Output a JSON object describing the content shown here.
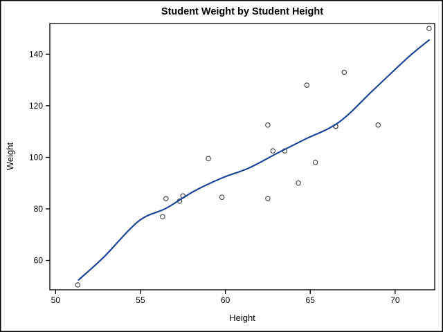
{
  "figure": {
    "background": "#ffffff",
    "border_color": "#000000"
  },
  "chart_data": {
    "type": "scatter",
    "title": "Student Weight by Student Height",
    "xlabel": "Height",
    "ylabel": "Weight",
    "x_ticks": [
      50,
      55,
      60,
      65,
      70
    ],
    "y_ticks": [
      60,
      80,
      100,
      120,
      140
    ],
    "xlim": [
      49.66,
      72.33
    ],
    "ylim": [
      48.6,
      151.9
    ],
    "grid": false,
    "legend": null,
    "points": [
      [
        51.3,
        50.5
      ],
      [
        56.3,
        77.0
      ],
      [
        56.5,
        84.0
      ],
      [
        57.3,
        83.0
      ],
      [
        57.5,
        85.0
      ],
      [
        59.0,
        99.5
      ],
      [
        59.8,
        84.5
      ],
      [
        62.5,
        84.0
      ],
      [
        62.5,
        112.5
      ],
      [
        62.8,
        102.5
      ],
      [
        63.5,
        102.5
      ],
      [
        64.3,
        90.0
      ],
      [
        64.8,
        128.0
      ],
      [
        65.3,
        98.0
      ],
      [
        66.5,
        112.0
      ],
      [
        66.5,
        112.0
      ],
      [
        67.0,
        133.0
      ],
      [
        69.0,
        112.5
      ],
      [
        72.0,
        150.0
      ]
    ],
    "fit_curve": {
      "name": "spline-fit",
      "color": "#1e4597",
      "width": 2.2,
      "points": [
        [
          51.35,
          52.4
        ],
        [
          52.84,
          61.3
        ],
        [
          54.88,
          75.2
        ],
        [
          56.5,
          80.2
        ],
        [
          58.14,
          86.8
        ],
        [
          59.77,
          91.9
        ],
        [
          61.4,
          95.9
        ],
        [
          63.03,
          101.5
        ],
        [
          64.66,
          106.9
        ],
        [
          66.69,
          113.6
        ],
        [
          68.73,
          126.2
        ],
        [
          70.77,
          138.8
        ],
        [
          72.0,
          145.5
        ]
      ]
    },
    "marker": {
      "shape": "open-circle",
      "color": "#3a3a3a",
      "radius": 3.2
    },
    "axis_color": "#000000"
  }
}
